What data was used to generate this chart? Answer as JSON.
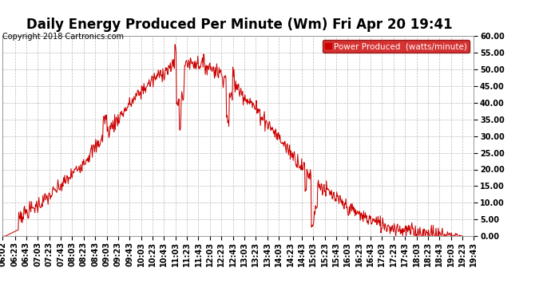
{
  "title": "Daily Energy Produced Per Minute (Wm) Fri Apr 20 19:41",
  "copyright": "Copyright 2018 Cartronics.com",
  "legend_label": "Power Produced  (watts/minute)",
  "legend_bg": "#cc0000",
  "legend_text_color": "#ffffff",
  "line_color": "#cc0000",
  "bg_color": "#ffffff",
  "grid_color": "#bbbbbb",
  "y_min": 0.0,
  "y_max": 60.0,
  "y_ticks": [
    0,
    5,
    10,
    15,
    20,
    25,
    30,
    35,
    40,
    45,
    50,
    55,
    60
  ],
  "title_fontsize": 12,
  "axis_fontsize": 7,
  "copyright_fontsize": 7,
  "tick_hours": [
    6,
    6,
    6,
    7,
    7,
    7,
    8,
    8,
    8,
    9,
    9,
    9,
    10,
    10,
    10,
    11,
    11,
    11,
    12,
    12,
    12,
    13,
    13,
    13,
    14,
    14,
    14,
    15,
    15,
    15,
    16,
    16,
    16,
    17,
    17,
    17,
    18,
    18,
    18,
    19,
    19,
    19
  ],
  "tick_mins": [
    2,
    23,
    43,
    3,
    23,
    43,
    3,
    23,
    43,
    3,
    23,
    43,
    3,
    23,
    43,
    3,
    23,
    43,
    3,
    23,
    43,
    3,
    23,
    43,
    3,
    23,
    43,
    3,
    23,
    43,
    3,
    23,
    43,
    3,
    23,
    43,
    3,
    23,
    43,
    3,
    23,
    43
  ]
}
